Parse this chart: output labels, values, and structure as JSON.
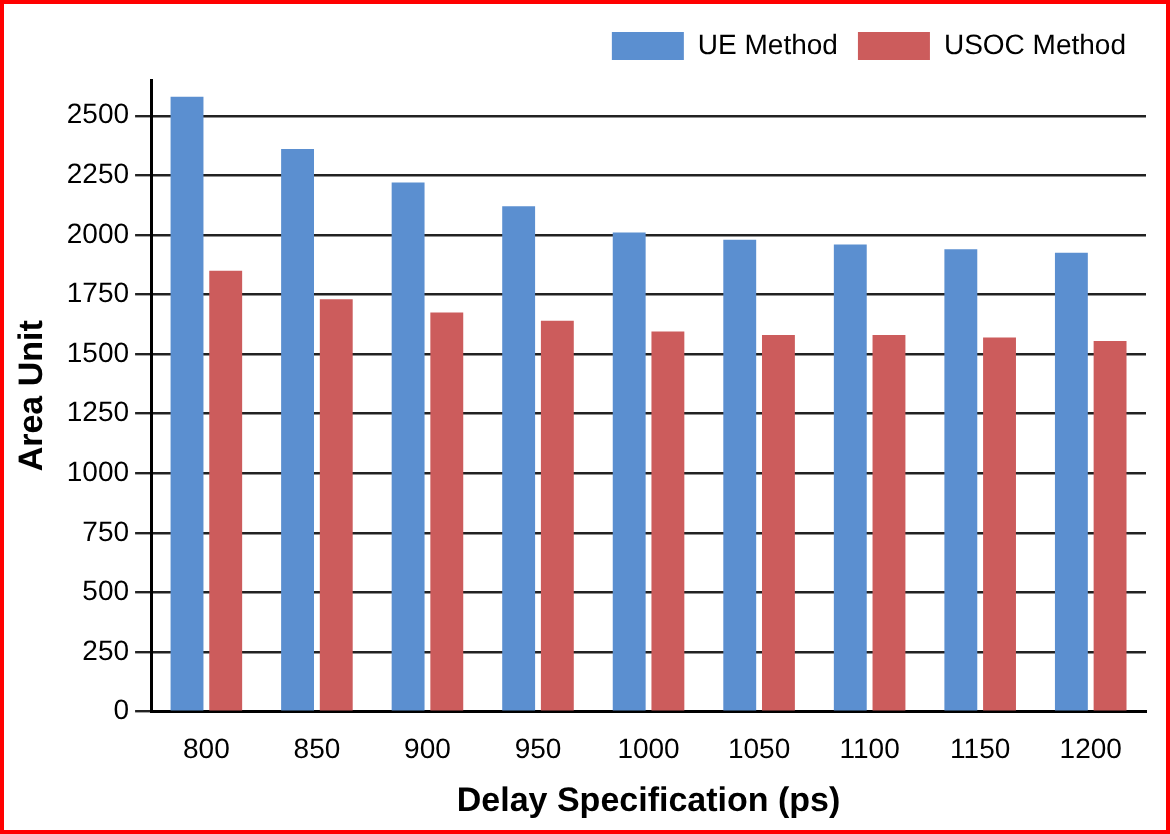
{
  "chart_data": {
    "type": "bar",
    "xlabel": "Delay Specification (ps)",
    "ylabel": "Area Unit",
    "categories": [
      "800",
      "850",
      "900",
      "950",
      "1000",
      "1050",
      "1100",
      "1150",
      "1200"
    ],
    "series": [
      {
        "name": "UE Method",
        "color": "#5b8fd0",
        "values": [
          2580,
          2360,
          2220,
          2120,
          2010,
          1980,
          1960,
          1940,
          1925
        ]
      },
      {
        "name": "USOC Method",
        "color": "#cc5c5c",
        "values": [
          1850,
          1730,
          1675,
          1640,
          1595,
          1580,
          1580,
          1570,
          1555
        ]
      }
    ],
    "ylim": [
      0,
      2650
    ],
    "yticks": [
      0,
      250,
      500,
      750,
      1000,
      1250,
      1500,
      1750,
      2000,
      2250,
      2500
    ],
    "grid": "y",
    "legend": "top right"
  }
}
